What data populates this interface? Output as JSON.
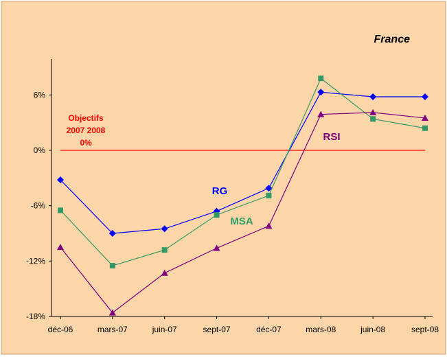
{
  "chart_data": {
    "type": "line",
    "title": "France",
    "categories": [
      "déc-06",
      "mars-07",
      "juin-07",
      "sept-07",
      "déc-07",
      "mars-08",
      "juin-08",
      "sept-08"
    ],
    "ylim": [
      -18,
      12
    ],
    "yticks": [
      -18,
      -12,
      -6,
      0,
      6
    ],
    "ytick_labels": [
      "-18%",
      "-12%",
      "-6%",
      "0%",
      "6%"
    ],
    "series": [
      {
        "name": "RG",
        "color": "#0000ff",
        "marker": "diamond",
        "values": [
          -3.2,
          -9.0,
          -8.5,
          -6.6,
          -4.1,
          6.3,
          5.8,
          5.8
        ]
      },
      {
        "name": "MSA",
        "color": "#339966",
        "marker": "square",
        "values": [
          -6.5,
          -12.5,
          -10.8,
          -7.0,
          -4.9,
          7.8,
          3.4,
          2.4
        ]
      },
      {
        "name": "RSI",
        "color": "#800080",
        "marker": "triangle",
        "values": [
          -10.5,
          -17.6,
          -13.3,
          -10.6,
          -8.2,
          3.9,
          4.1,
          3.5
        ]
      }
    ],
    "reference_line": {
      "value": 0,
      "color": "#ff0000"
    },
    "annotation": {
      "lines": [
        "Objectifs",
        "2007 2008",
        "0%"
      ],
      "color": "#ff0000"
    },
    "background": "#fcd5a8"
  }
}
